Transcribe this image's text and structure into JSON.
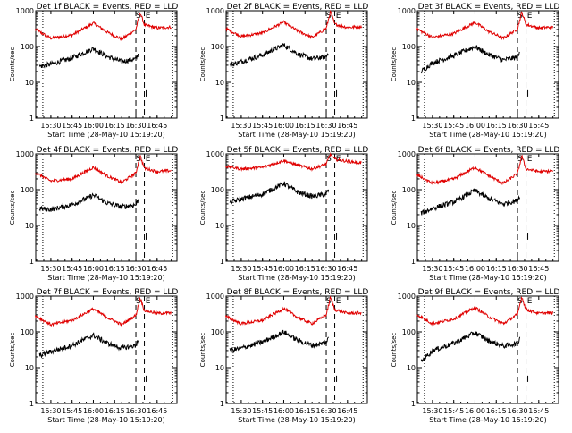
{
  "figure": {
    "colors": {
      "events": "#000000",
      "lld": "#e00000",
      "background": "#ffffff",
      "axes": "#000000"
    }
  },
  "chart_data": [
    {
      "type": "line",
      "title": "Det 1f BLACK = Events, RED = LLD",
      "xlabel": "Start Time (28-May-10 15:19:20)",
      "ylabel": "Counts/sec",
      "xticks": [
        "15:30",
        "15:45",
        "16:00",
        "16:15",
        "16:30",
        "16:45"
      ],
      "yticks": [
        "1",
        "10",
        "100",
        "1000"
      ],
      "ylim": [
        1,
        1000
      ],
      "yscale": "log",
      "markers": {
        "S": "16:30",
        "E": "16:36"
      },
      "series": [
        {
          "name": "LLD",
          "color": "#e00000",
          "x": [
            "15:19",
            "15:30",
            "15:45",
            "16:00",
            "16:10",
            "16:20",
            "16:30",
            "16:33",
            "16:36",
            "16:45",
            "16:55"
          ],
          "values": [
            300,
            170,
            210,
            450,
            250,
            160,
            300,
            900,
            400,
            330,
            350
          ]
        },
        {
          "name": "Events",
          "color": "#000000",
          "x": [
            "15:22",
            "15:30",
            "15:45",
            "16:00",
            "16:10",
            "16:20",
            "16:30",
            "16:32"
          ],
          "values": [
            28,
            32,
            48,
            88,
            52,
            38,
            45,
            65
          ]
        }
      ]
    },
    {
      "type": "line",
      "title": "Det 2f BLACK = Events, RED = LLD",
      "xlabel": "Start Time (28-May-10 15:19:20)",
      "ylabel": "Counts/sec",
      "xticks": [
        "15:30",
        "15:45",
        "16:00",
        "16:15",
        "16:30",
        "16:45"
      ],
      "yticks": [
        "1",
        "10",
        "100",
        "1000"
      ],
      "ylim": [
        1,
        1000
      ],
      "yscale": "log",
      "markers": {
        "S": "16:30",
        "E": "16:36"
      },
      "series": [
        {
          "name": "LLD",
          "color": "#e00000",
          "x": [
            "15:19",
            "15:30",
            "15:45",
            "16:00",
            "16:10",
            "16:20",
            "16:30",
            "16:33",
            "16:36",
            "16:45",
            "16:55"
          ],
          "values": [
            320,
            190,
            240,
            480,
            270,
            180,
            320,
            950,
            420,
            340,
            360
          ]
        },
        {
          "name": "Events",
          "color": "#000000",
          "x": [
            "15:22",
            "15:30",
            "15:45",
            "16:00",
            "16:10",
            "16:20",
            "16:30",
            "16:32"
          ],
          "values": [
            30,
            38,
            58,
            110,
            62,
            45,
            52,
            75
          ]
        }
      ]
    },
    {
      "type": "line",
      "title": "Det 3f BLACK = Events, RED = LLD",
      "xlabel": "Start Time (28-May-10 15:19:20)",
      "ylabel": "Counts/sec",
      "xticks": [
        "15:30",
        "15:45",
        "16:00",
        "16:15",
        "16:30",
        "16:45"
      ],
      "yticks": [
        "1",
        "10",
        "100",
        "1000"
      ],
      "ylim": [
        1,
        1000
      ],
      "yscale": "log",
      "markers": {
        "S": "16:30",
        "E": "16:36"
      },
      "series": [
        {
          "name": "LLD",
          "color": "#e00000",
          "x": [
            "15:19",
            "15:30",
            "15:45",
            "16:00",
            "16:10",
            "16:20",
            "16:30",
            "16:33",
            "16:36",
            "16:45",
            "16:55"
          ],
          "values": [
            310,
            180,
            230,
            470,
            260,
            170,
            310,
            920,
            410,
            330,
            350
          ]
        },
        {
          "name": "Events",
          "color": "#000000",
          "x": [
            "15:22",
            "15:30",
            "15:45",
            "16:00",
            "16:10",
            "16:20",
            "16:30",
            "16:32"
          ],
          "values": [
            20,
            35,
            55,
            100,
            58,
            42,
            50,
            72
          ]
        }
      ]
    },
    {
      "type": "line",
      "title": "Det 4f BLACK = Events, RED = LLD",
      "xlabel": "Start Time (28-May-10 15:19:20)",
      "ylabel": "Counts/sec",
      "xticks": [
        "15:30",
        "15:45",
        "16:00",
        "16:15",
        "16:30",
        "16:45"
      ],
      "yticks": [
        "1",
        "10",
        "100",
        "1000"
      ],
      "ylim": [
        1,
        1000
      ],
      "yscale": "log",
      "markers": {
        "S": "16:30",
        "E": "16:36"
      },
      "series": [
        {
          "name": "LLD",
          "color": "#e00000",
          "x": [
            "15:19",
            "15:30",
            "15:45",
            "16:00",
            "16:10",
            "16:20",
            "16:30",
            "16:33",
            "16:36",
            "16:45",
            "16:55"
          ],
          "values": [
            300,
            175,
            200,
            420,
            240,
            160,
            290,
            880,
            400,
            320,
            340
          ]
        },
        {
          "name": "Events",
          "color": "#000000",
          "x": [
            "15:22",
            "15:30",
            "15:45",
            "16:00",
            "16:10",
            "16:20",
            "16:30",
            "16:32"
          ],
          "values": [
            30,
            28,
            38,
            70,
            42,
            33,
            38,
            55
          ]
        }
      ]
    },
    {
      "type": "line",
      "title": "Det 5f BLACK = Events, RED = LLD",
      "xlabel": "Start Time (28-May-10 15:19:20)",
      "ylabel": "Counts/sec",
      "xticks": [
        "15:30",
        "15:45",
        "16:00",
        "16:15",
        "16:30",
        "16:45"
      ],
      "yticks": [
        "1",
        "10",
        "100",
        "1000"
      ],
      "ylim": [
        1,
        1000
      ],
      "yscale": "log",
      "markers": {
        "S": "16:30",
        "E": "16:36"
      },
      "series": [
        {
          "name": "LLD",
          "color": "#e00000",
          "x": [
            "15:19",
            "15:30",
            "15:45",
            "16:00",
            "16:10",
            "16:20",
            "16:30",
            "16:33",
            "16:36",
            "16:45",
            "16:55"
          ],
          "values": [
            450,
            380,
            420,
            650,
            480,
            380,
            520,
            1000,
            700,
            620,
            560
          ]
        },
        {
          "name": "Events",
          "color": "#000000",
          "x": [
            "15:22",
            "15:30",
            "15:45",
            "16:00",
            "16:10",
            "16:20",
            "16:30",
            "16:32"
          ],
          "values": [
            45,
            55,
            75,
            150,
            85,
            65,
            75,
            105
          ]
        }
      ]
    },
    {
      "type": "line",
      "title": "Det 6f BLACK = Events, RED = LLD",
      "xlabel": "Start Time (28-May-10 15:19:20)",
      "ylabel": "Counts/sec",
      "xticks": [
        "15:30",
        "15:45",
        "16:00",
        "16:15",
        "16:30",
        "16:45"
      ],
      "yticks": [
        "1",
        "10",
        "100",
        "1000"
      ],
      "ylim": [
        1,
        1000
      ],
      "yscale": "log",
      "markers": {
        "S": "16:30",
        "E": "16:36"
      },
      "series": [
        {
          "name": "LLD",
          "color": "#e00000",
          "x": [
            "15:19",
            "15:30",
            "15:45",
            "16:00",
            "16:10",
            "16:20",
            "16:30",
            "16:33",
            "16:36",
            "16:45",
            "16:55"
          ],
          "values": [
            260,
            150,
            200,
            420,
            240,
            150,
            280,
            880,
            380,
            320,
            330
          ]
        },
        {
          "name": "Events",
          "color": "#000000",
          "x": [
            "15:22",
            "15:30",
            "15:45",
            "16:00",
            "16:10",
            "16:20",
            "16:30",
            "16:32"
          ],
          "values": [
            22,
            30,
            45,
            95,
            55,
            40,
            50,
            75
          ]
        }
      ]
    },
    {
      "type": "line",
      "title": "Det 7f BLACK = Events, RED = LLD",
      "xlabel": "Start Time (28-May-10 15:19:20)",
      "ylabel": "Counts/sec",
      "xticks": [
        "15:30",
        "15:45",
        "16:00",
        "16:15",
        "16:30",
        "16:45"
      ],
      "yticks": [
        "1",
        "10",
        "100",
        "1000"
      ],
      "ylim": [
        1,
        1000
      ],
      "yscale": "log",
      "markers": {
        "S": "16:30",
        "E": "16:36"
      },
      "series": [
        {
          "name": "LLD",
          "color": "#e00000",
          "x": [
            "15:19",
            "15:30",
            "15:45",
            "16:00",
            "16:10",
            "16:20",
            "16:30",
            "16:33",
            "16:36",
            "16:45",
            "16:55"
          ],
          "values": [
            280,
            160,
            210,
            440,
            250,
            160,
            290,
            900,
            400,
            330,
            340
          ]
        },
        {
          "name": "Events",
          "color": "#000000",
          "x": [
            "15:22",
            "15:30",
            "15:45",
            "16:00",
            "16:10",
            "16:20",
            "16:30",
            "16:32"
          ],
          "values": [
            22,
            28,
            42,
            80,
            48,
            35,
            42,
            65
          ]
        }
      ]
    },
    {
      "type": "line",
      "title": "Det 8f BLACK = Events, RED = LLD",
      "xlabel": "Start Time (28-May-10 15:19:20)",
      "ylabel": "Counts/sec",
      "xticks": [
        "15:30",
        "15:45",
        "16:00",
        "16:15",
        "16:30",
        "16:45"
      ],
      "yticks": [
        "1",
        "10",
        "100",
        "1000"
      ],
      "ylim": [
        1,
        1000
      ],
      "yscale": "log",
      "markers": {
        "S": "16:30",
        "E": "16:36"
      },
      "series": [
        {
          "name": "LLD",
          "color": "#e00000",
          "x": [
            "15:19",
            "15:30",
            "15:45",
            "16:00",
            "16:10",
            "16:20",
            "16:30",
            "16:33",
            "16:36",
            "16:45",
            "16:55"
          ],
          "values": [
            270,
            170,
            210,
            450,
            250,
            170,
            300,
            920,
            420,
            330,
            340
          ]
        },
        {
          "name": "Events",
          "color": "#000000",
          "x": [
            "15:22",
            "15:30",
            "15:45",
            "16:00",
            "16:10",
            "16:20",
            "16:30",
            "16:32"
          ],
          "values": [
            30,
            35,
            52,
            100,
            58,
            42,
            50,
            72
          ]
        }
      ]
    },
    {
      "type": "line",
      "title": "Det 9f BLACK = Events, RED = LLD",
      "xlabel": "Start Time (28-May-10 15:19:20)",
      "ylabel": "Counts/sec",
      "xticks": [
        "15:30",
        "15:45",
        "16:00",
        "16:15",
        "16:30",
        "16:45"
      ],
      "yticks": [
        "1",
        "10",
        "100",
        "1000"
      ],
      "ylim": [
        1,
        1000
      ],
      "yscale": "log",
      "markers": {
        "S": "16:30",
        "E": "16:36"
      },
      "series": [
        {
          "name": "LLD",
          "color": "#e00000",
          "x": [
            "15:19",
            "15:30",
            "15:45",
            "16:00",
            "16:10",
            "16:20",
            "16:30",
            "16:33",
            "16:36",
            "16:45",
            "16:55"
          ],
          "values": [
            300,
            170,
            230,
            480,
            260,
            170,
            310,
            950,
            420,
            330,
            340
          ]
        },
        {
          "name": "Events",
          "color": "#000000",
          "x": [
            "15:22",
            "15:30",
            "15:45",
            "16:00",
            "16:10",
            "16:20",
            "16:30",
            "16:32"
          ],
          "values": [
            15,
            30,
            48,
            95,
            55,
            40,
            48,
            70
          ]
        }
      ]
    }
  ]
}
